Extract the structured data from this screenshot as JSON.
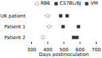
{
  "chart_data": {
    "type": "scatter",
    "xlabel": "Days postinoculation",
    "categories": [
      "UK patient",
      "Patient 1",
      "Patient 2"
    ],
    "xlim": [
      300,
      700
    ],
    "xticks": [
      300,
      400,
      500,
      600,
      700
    ],
    "legend": "upper right",
    "series": [
      {
        "name": "RB6",
        "color": "#aaaaaa",
        "marker": "open circle",
        "values": [
          400,
          410,
          370
        ],
        "xerr": [
          18,
          18,
          8
        ]
      },
      {
        "name": "C57BL/6J",
        "color": "#333333",
        "marker": "square",
        "values": [
          480,
          495,
          560
        ],
        "xerr": [
          5,
          5,
          6
        ]
      },
      {
        "name": "VM",
        "color": "#333333",
        "marker": "square",
        "values": [
          520,
          590,
          580
        ],
        "xerr": [
          5,
          5,
          5
        ]
      }
    ]
  }
}
